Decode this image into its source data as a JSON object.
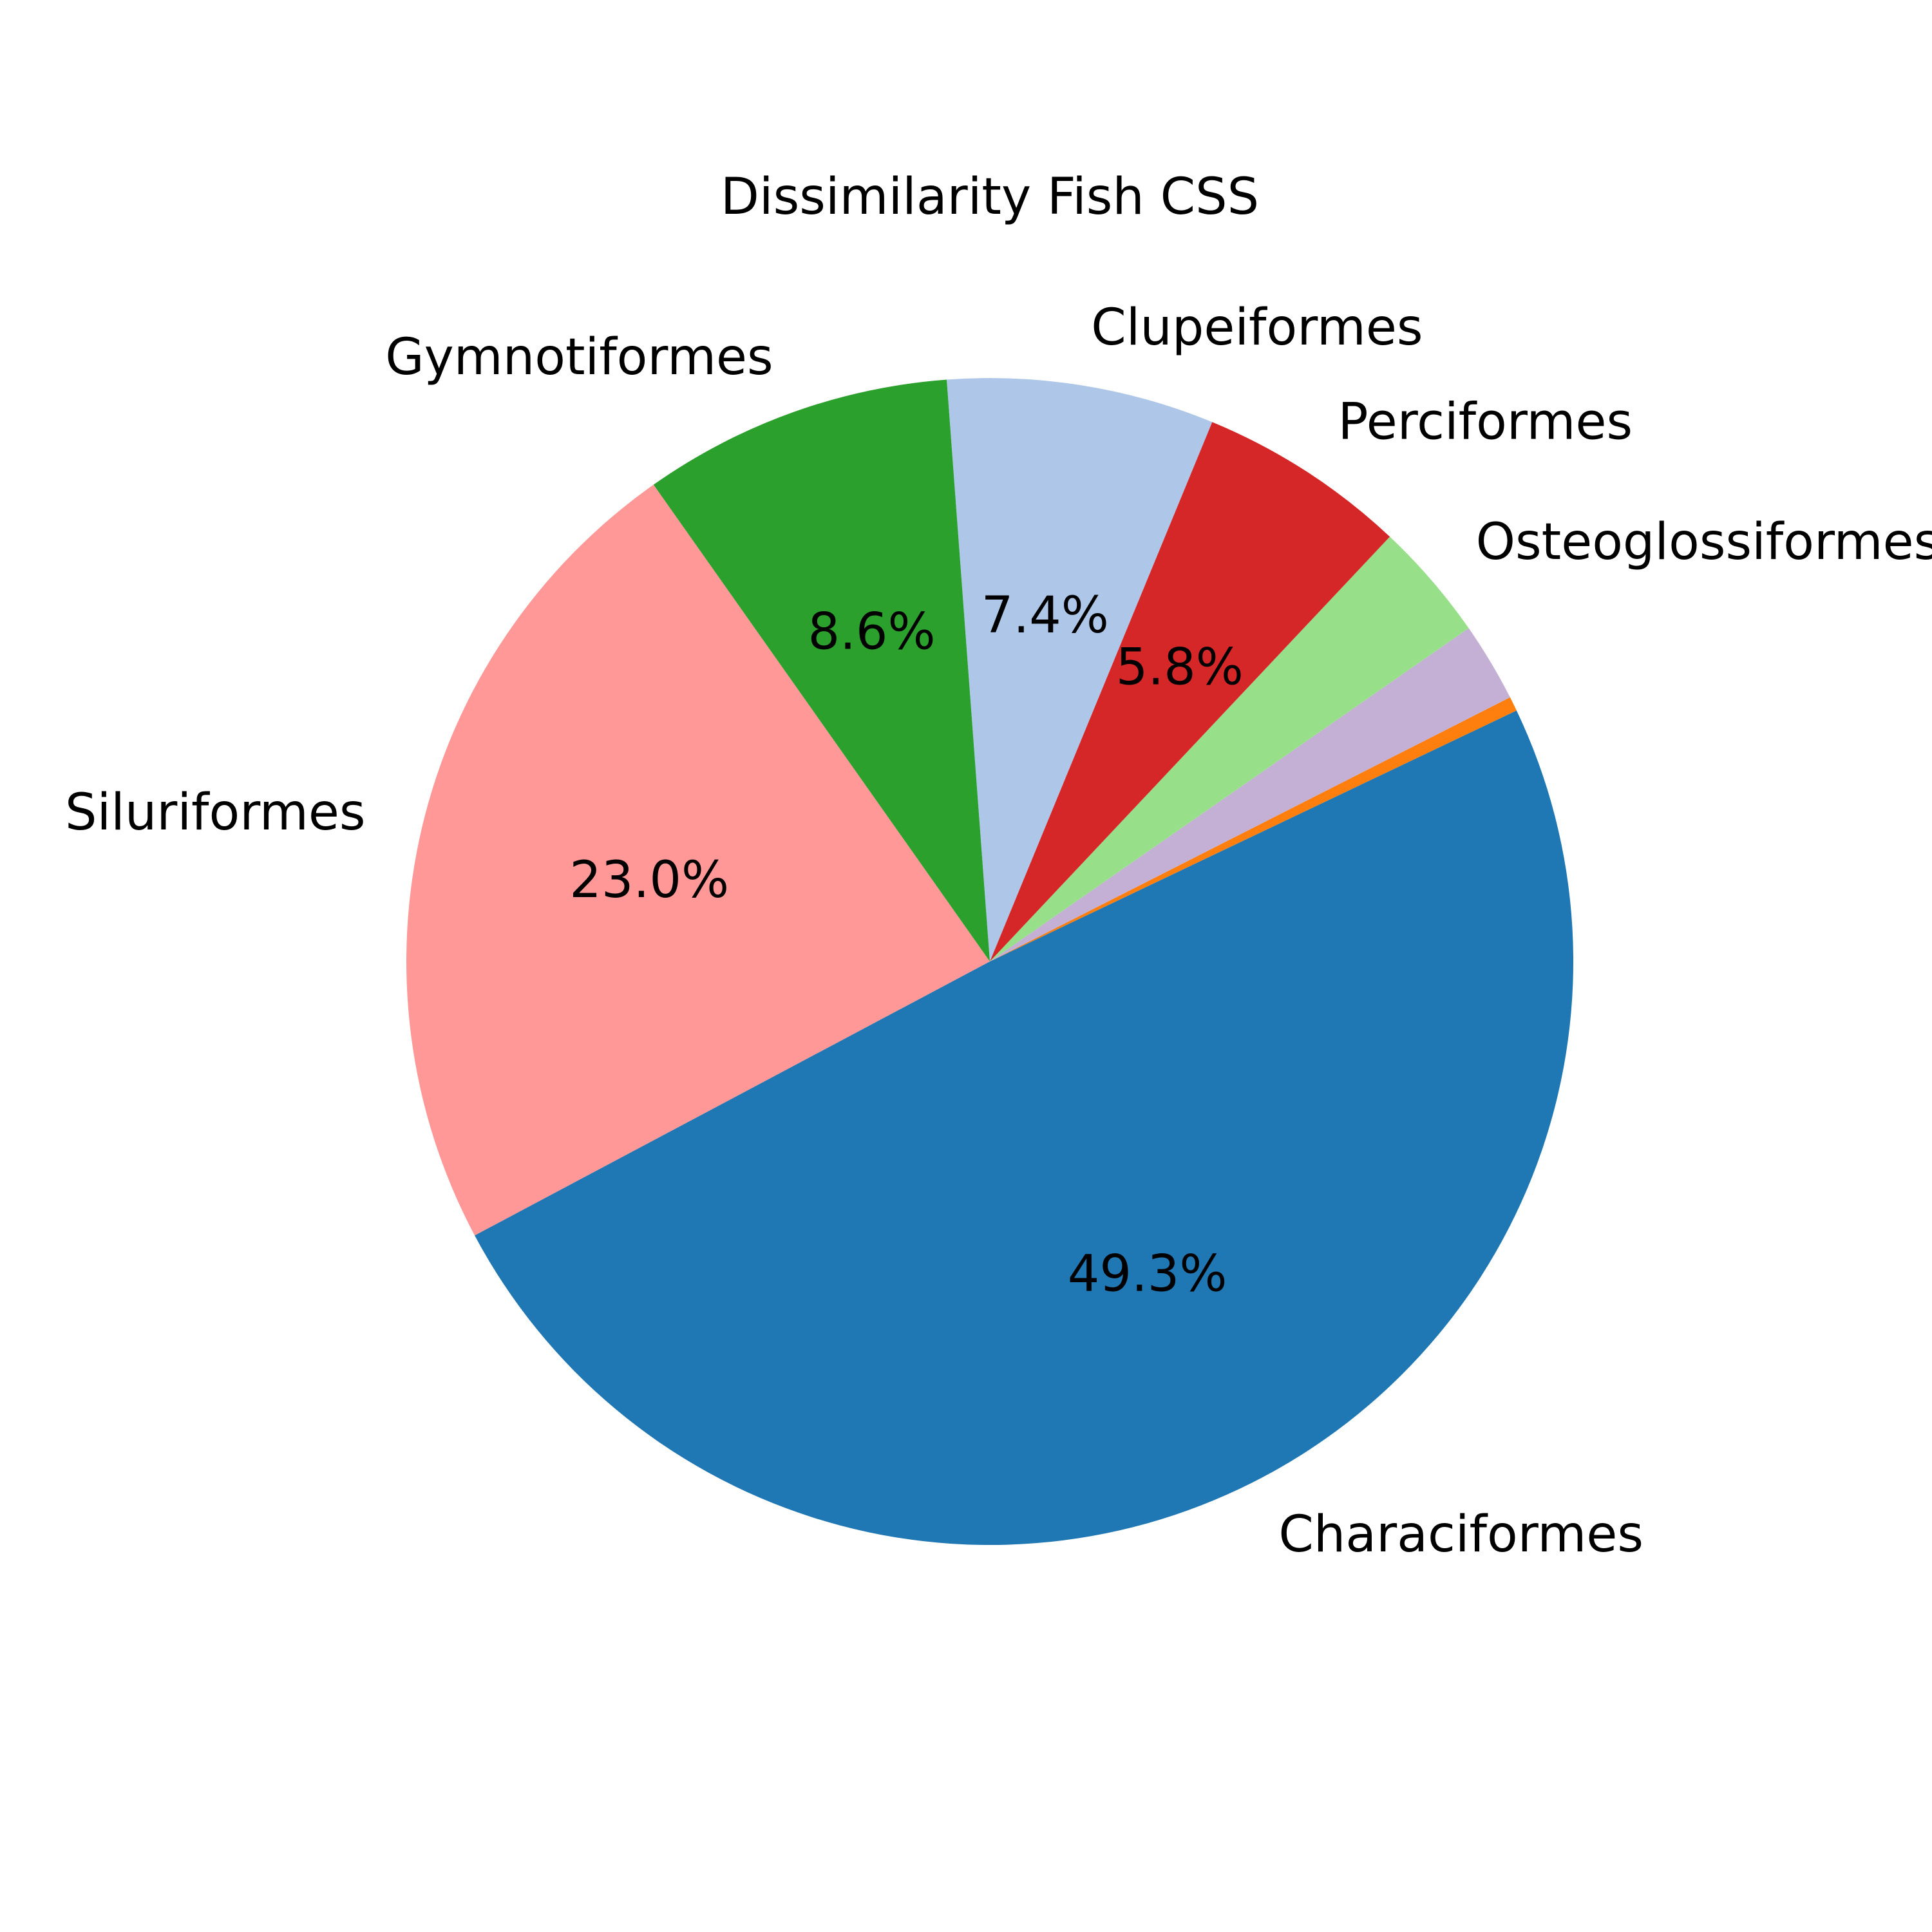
{
  "chart_data": {
    "type": "pie",
    "title": "Dissimilarity Fish CSS",
    "slices": [
      {
        "label": "Characiformes",
        "value": 49.3,
        "pct_label": "49.3%",
        "color": "#1f77b4"
      },
      {
        "label": "",
        "value": 0.4,
        "pct_label": "",
        "color": "#ff7f0e"
      },
      {
        "label": "",
        "value": 2.2,
        "pct_label": "",
        "color": "#c5b0d5"
      },
      {
        "label": "Osteoglossiformes",
        "value": 3.3,
        "pct_label": "",
        "color": "#98df8a"
      },
      {
        "label": "Perciformes",
        "value": 5.8,
        "pct_label": "5.8%",
        "color": "#d62728"
      },
      {
        "label": "Clupeiformes",
        "value": 7.4,
        "pct_label": "7.4%",
        "color": "#aec7e8"
      },
      {
        "label": "Gymnotiformes",
        "value": 8.6,
        "pct_label": "8.6%",
        "color": "#2ca02c"
      },
      {
        "label": "Siluriformes",
        "value": 23.0,
        "pct_label": "23.0%",
        "color": "#ff9896"
      }
    ]
  }
}
